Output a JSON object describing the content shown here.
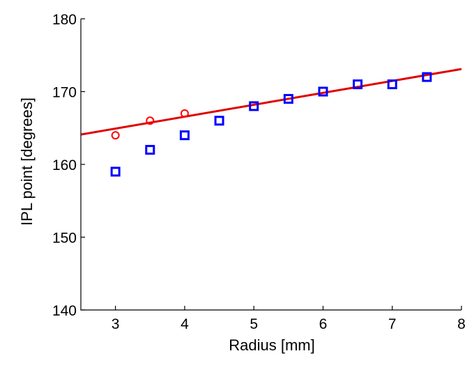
{
  "chart_data": {
    "type": "scatter",
    "xlabel": "Radius [mm]",
    "ylabel": "IPL point [degrees]",
    "xlim": [
      2.5,
      8
    ],
    "ylim": [
      140,
      180
    ],
    "xticks": [
      3,
      4,
      5,
      6,
      7,
      8
    ],
    "yticks": [
      140,
      150,
      160,
      170,
      180
    ],
    "grid": false,
    "series": [
      {
        "marker": "square",
        "color": "#0000ff",
        "x": [
          3,
          3.5,
          4,
          4.5,
          5,
          5.5,
          6,
          6.5,
          7,
          7.5
        ],
        "y": [
          159,
          162,
          164,
          166,
          168,
          169,
          170,
          171,
          171,
          172
        ]
      },
      {
        "marker": "circle",
        "color": "#ff0000",
        "x": [
          3,
          3.5,
          4
        ],
        "y": [
          164,
          166,
          167
        ]
      },
      {
        "type": "line",
        "color": "#e00000",
        "x": [
          2.5,
          8
        ],
        "y": [
          164.1,
          173.1
        ]
      }
    ]
  }
}
